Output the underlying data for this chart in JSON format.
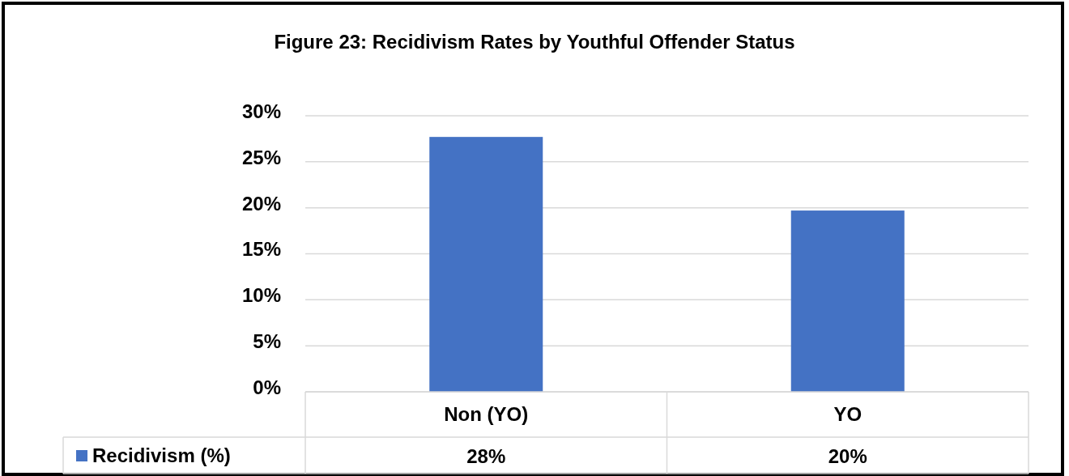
{
  "chart_data": {
    "type": "bar",
    "title": "Figure 23: Recidivism Rates by Youthful Offender Status",
    "categories": [
      "Non (YO)",
      "YO"
    ],
    "series": [
      {
        "name": "Recidivism (%)",
        "color": "#4472c4",
        "values": [
          27.7,
          19.7
        ],
        "value_labels": [
          "28%",
          "20%"
        ]
      }
    ],
    "ylim": [
      0,
      30
    ],
    "yticks": [
      {
        "value": 0,
        "label": "0%"
      },
      {
        "value": 5,
        "label": "5%"
      },
      {
        "value": 10,
        "label": "10%"
      },
      {
        "value": 15,
        "label": "15%"
      },
      {
        "value": 20,
        "label": "20%"
      },
      {
        "value": 25,
        "label": "25%"
      },
      {
        "value": 30,
        "label": "30%"
      }
    ],
    "grid": "y",
    "legend": "bottom"
  }
}
